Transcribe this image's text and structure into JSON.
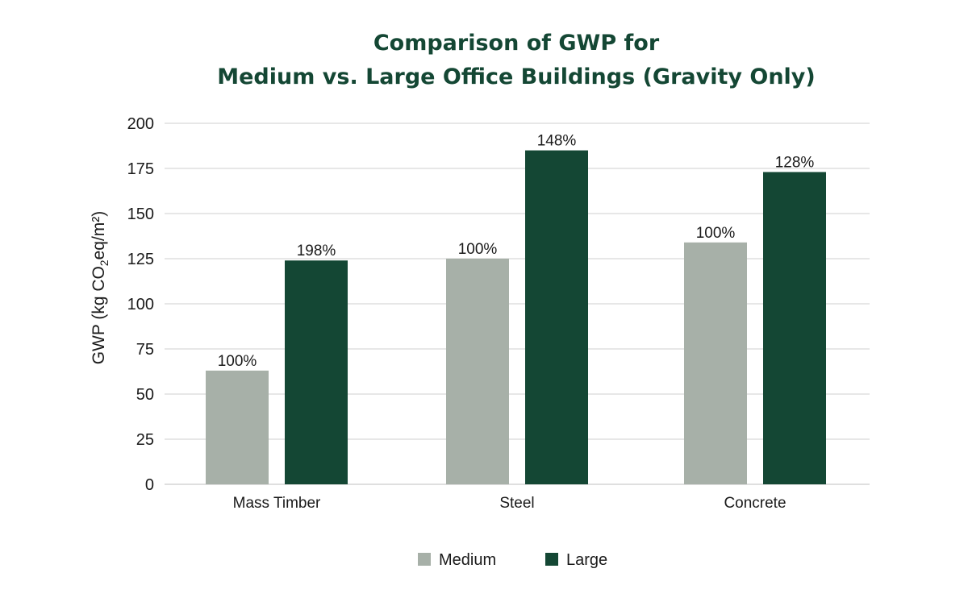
{
  "chart_data": {
    "type": "bar",
    "title": "Comparison of GWP for",
    "subtitle": "Medium vs. Large Office Buildings (Gravity Only)",
    "xlabel": "",
    "ylabel": {
      "prefix": "GWP (kg CO",
      "sub": "2",
      "suffix": "eq/m²)"
    },
    "ylim": [
      0,
      200
    ],
    "yticks": [
      "0",
      "25",
      "50",
      "75",
      "100",
      "125",
      "150",
      "175",
      "200"
    ],
    "grid": true,
    "legend_position": "bottom-center",
    "categories": [
      "Mass Timber",
      "Steel",
      "Concrete"
    ],
    "series": [
      {
        "name": "Medium",
        "color": "#a7b0a8",
        "values": [
          63,
          125,
          134
        ],
        "labels": [
          "100%",
          "100%",
          "100%"
        ]
      },
      {
        "name": "Large",
        "color": "#144734",
        "values": [
          124,
          185,
          173
        ],
        "labels": [
          "198%",
          "148%",
          "128%"
        ]
      }
    ]
  }
}
